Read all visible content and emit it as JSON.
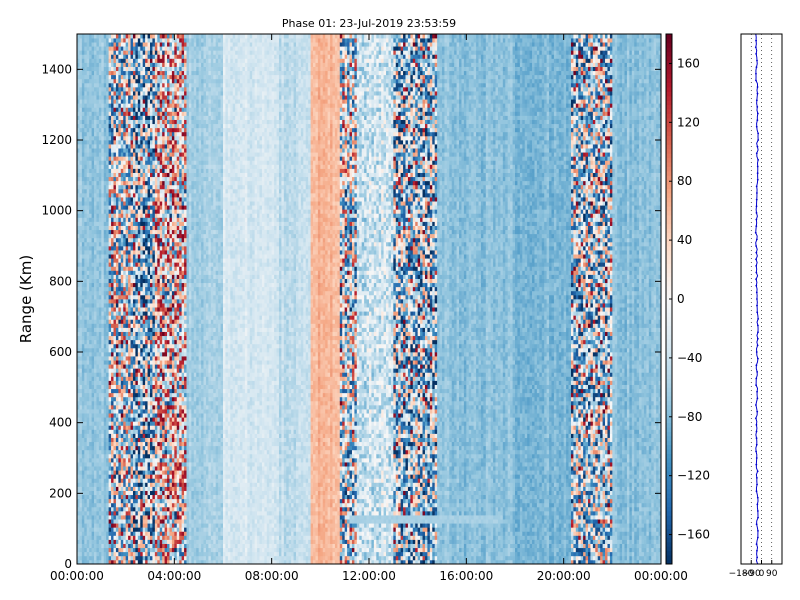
{
  "chart_data": [
    {
      "type": "heatmap",
      "title": "Phase 01: 23-Jul-2019 23:53:59",
      "xlabel": "",
      "ylabel": "Range (Km)",
      "x_tick_labels": [
        "00:00:00",
        "04:00:00",
        "08:00:00",
        "12:00:00",
        "16:00:00",
        "20:00:00",
        "00:00:00"
      ],
      "x_range_hours": [
        0,
        24
      ],
      "y_ticks": [
        0,
        200,
        400,
        600,
        800,
        1000,
        1200,
        1400
      ],
      "ylim": [
        0,
        1500
      ],
      "colorbar": {
        "ticks": [
          -160,
          -120,
          -80,
          -40,
          0,
          40,
          80,
          120,
          160
        ],
        "range": [
          -180,
          180
        ],
        "colormap": "RdBu_r",
        "low_color": "#053061",
        "mid_color": "#f7f7f7",
        "high_color": "#67001f"
      },
      "phase_profile": [
        {
          "time_hours": [
            0.0,
            1.3
          ],
          "phase_deg": -70,
          "noise": "low"
        },
        {
          "time_hours": [
            1.3,
            2.3
          ],
          "phase_deg": -20,
          "noise": "high"
        },
        {
          "time_hours": [
            2.3,
            3.2
          ],
          "phase_deg": -60,
          "noise": "high"
        },
        {
          "time_hours": [
            3.2,
            4.5
          ],
          "phase_deg": 30,
          "noise": "high"
        },
        {
          "time_hours": [
            4.5,
            6.0
          ],
          "phase_deg": -60,
          "noise": "low"
        },
        {
          "time_hours": [
            6.0,
            8.3
          ],
          "phase_deg": -30,
          "noise": "low"
        },
        {
          "time_hours": [
            8.3,
            9.6
          ],
          "phase_deg": -45,
          "noise": "low"
        },
        {
          "time_hours": [
            9.6,
            10.8
          ],
          "phase_deg": 60,
          "noise": "low"
        },
        {
          "time_hours": [
            10.8,
            11.5
          ],
          "phase_deg": -20,
          "noise": "high"
        },
        {
          "time_hours": [
            11.5,
            13.0
          ],
          "phase_deg": -35,
          "noise": "medium"
        },
        {
          "time_hours": [
            13.0,
            14.8
          ],
          "phase_deg": -50,
          "noise": "high"
        },
        {
          "time_hours": [
            14.8,
            18.0
          ],
          "phase_deg": -75,
          "noise": "low"
        },
        {
          "time_hours": [
            18.0,
            20.3
          ],
          "phase_deg": -80,
          "noise": "low"
        },
        {
          "time_hours": [
            20.3,
            22.0
          ],
          "phase_deg": -40,
          "noise": "high"
        },
        {
          "time_hours": [
            22.0,
            24.0
          ],
          "phase_deg": -75,
          "noise": "low"
        }
      ],
      "features": [
        {
          "name": "low-range streak",
          "time_hours": [
            11.2,
            17.5
          ],
          "range_km": [
            110,
            140
          ],
          "phase_deg": -60
        }
      ]
    },
    {
      "type": "line",
      "x_tick_labels": [
        "-180",
        "-90",
        "0",
        "90"
      ],
      "xlim": [
        -180,
        180
      ],
      "ylim": [
        0,
        1500
      ],
      "line_color": "#0000cc",
      "mean_phase_deg": -40,
      "grid": "vertical dotted"
    }
  ]
}
